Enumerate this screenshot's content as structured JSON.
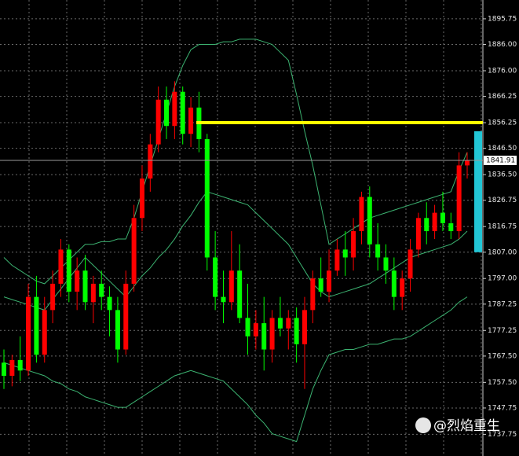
{
  "chart_data": {
    "type": "candlestick",
    "ylim": [
      1729.5,
      1902.9
    ],
    "yticks": [
      1895.75,
      {
        "value": 1886,
        "label": "1886.00"
      },
      {
        "value": 1876,
        "label": "1876.00"
      },
      1866.25,
      1856.25,
      {
        "value": 1846.5,
        "label": "1846.50"
      },
      {
        "value": 1836.5,
        "label": "1836.50"
      },
      1826.75,
      1816.75,
      {
        "value": 1807,
        "label": "1807.00"
      },
      {
        "value": 1797,
        "label": "1797.00"
      },
      1787.25,
      1777.25,
      {
        "value": 1767.5,
        "label": "1767.50"
      },
      {
        "value": 1757.5,
        "label": "1757.50"
      },
      1747.75,
      1737.75
    ],
    "grid": true,
    "up_color": "#ff0000",
    "down_color": "#00ff00",
    "open": [
      1765,
      1760,
      1766,
      1762,
      1790,
      1768,
      1785,
      1795,
      1808,
      1792,
      1800,
      1788,
      1795,
      1790,
      1785,
      1770,
      1795,
      1820,
      1835,
      1848,
      1865,
      1855,
      1868,
      1852,
      1862,
      1850,
      1805,
      1790,
      1788,
      1800,
      1782,
      1775,
      1780,
      1770,
      1782,
      1778,
      1782,
      1772,
      1785,
      1797,
      1792,
      1800,
      1808,
      1805,
      1815,
      1828,
      1810,
      1805,
      1800,
      1790,
      1797,
      1808,
      1820,
      1815,
      1822,
      1818,
      1815,
      1840
    ],
    "high": [
      1770,
      1768,
      1775,
      1795,
      1798,
      1790,
      1800,
      1812,
      1810,
      1805,
      1806,
      1798,
      1800,
      1794,
      1790,
      1800,
      1825,
      1840,
      1852,
      1870,
      1870,
      1872,
      1870,
      1866,
      1868,
      1852,
      1815,
      1800,
      1815,
      1810,
      1795,
      1785,
      1790,
      1785,
      1790,
      1785,
      1786,
      1790,
      1800,
      1805,
      1808,
      1812,
      1815,
      1820,
      1830,
      1832,
      1818,
      1810,
      1805,
      1800,
      1812,
      1822,
      1826,
      1825,
      1830,
      1822,
      1845,
      1845
    ],
    "low": [
      1755,
      1756,
      1758,
      1760,
      1765,
      1765,
      1780,
      1790,
      1788,
      1785,
      1785,
      1780,
      1785,
      1775,
      1765,
      1768,
      1792,
      1815,
      1830,
      1845,
      1850,
      1850,
      1848,
      1847,
      1845,
      1800,
      1785,
      1780,
      1785,
      1780,
      1768,
      1770,
      1762,
      1765,
      1775,
      1770,
      1765,
      1755,
      1780,
      1790,
      1788,
      1798,
      1798,
      1800,
      1810,
      1805,
      1800,
      1795,
      1785,
      1785,
      1792,
      1805,
      1810,
      1812,
      1815,
      1812,
      1812,
      1835
    ],
    "close": [
      1760,
      1766,
      1762,
      1790,
      1768,
      1785,
      1795,
      1808,
      1792,
      1800,
      1788,
      1795,
      1790,
      1785,
      1770,
      1795,
      1820,
      1835,
      1848,
      1865,
      1855,
      1868,
      1852,
      1862,
      1850,
      1805,
      1790,
      1788,
      1800,
      1782,
      1775,
      1780,
      1770,
      1782,
      1778,
      1782,
      1772,
      1785,
      1797,
      1792,
      1800,
      1808,
      1805,
      1815,
      1828,
      1810,
      1805,
      1800,
      1790,
      1797,
      1808,
      1820,
      1815,
      1822,
      1818,
      1815,
      1840,
      1842
    ],
    "bands": [
      {
        "color": "#3cb371",
        "values": [
          1805,
          1802,
          1800,
          1798,
          1796,
          1795,
          1798,
          1801,
          1804,
          1807,
          1810,
          1810,
          1811,
          1811,
          1812,
          1812,
          1820,
          1830,
          1840,
          1850,
          1860,
          1870,
          1878,
          1884,
          1886,
          1886,
          1886,
          1887,
          1887,
          1888,
          1888,
          1888,
          1887,
          1886,
          1883,
          1880,
          1867,
          1853,
          1840,
          1825,
          1810,
          1812,
          1814,
          1816,
          1818,
          1820,
          1821,
          1822,
          1823,
          1824,
          1825,
          1826,
          1827,
          1828,
          1829,
          1830,
          1838,
          1845
        ]
      },
      {
        "color": "#3cb371",
        "values": [
          1790,
          1789,
          1788,
          1787,
          1786,
          1785,
          1789,
          1793,
          1797,
          1801,
          1805,
          1802,
          1799,
          1796,
          1793,
          1790,
          1794,
          1798,
          1801,
          1805,
          1808,
          1812,
          1817,
          1821,
          1826,
          1830,
          1829,
          1828,
          1827,
          1826,
          1825,
          1822,
          1819,
          1816,
          1813,
          1810,
          1805,
          1800,
          1795,
          1792,
          1790,
          1791,
          1792,
          1793,
          1794,
          1795,
          1797,
          1799,
          1801,
          1803,
          1805,
          1806,
          1807,
          1808,
          1809,
          1810,
          1812,
          1815
        ]
      },
      {
        "color": "#3cb371",
        "values": [
          1765,
          1764,
          1763,
          1762,
          1761,
          1760,
          1758,
          1757,
          1755,
          1754,
          1752,
          1751,
          1750,
          1749,
          1748,
          1748,
          1750,
          1752,
          1754,
          1756,
          1758,
          1760,
          1761,
          1762,
          1761,
          1760,
          1759,
          1758,
          1755,
          1752,
          1749,
          1745,
          1742,
          1738,
          1737,
          1736,
          1735,
          1745,
          1755,
          1762,
          1768,
          1769,
          1770,
          1770,
          1771,
          1772,
          1772,
          1773,
          1774,
          1774,
          1775,
          1777,
          1779,
          1781,
          1783,
          1785,
          1788,
          1790
        ]
      }
    ],
    "level": {
      "value": 1856.25,
      "color": "#ffff00"
    },
    "bid": {
      "value": 1841.91,
      "label": "1841.91"
    },
    "range_bar": {
      "values": [
        1807,
        1853
      ],
      "color": "#22c6d6"
    },
    "watermark": "@烈焰重生"
  }
}
